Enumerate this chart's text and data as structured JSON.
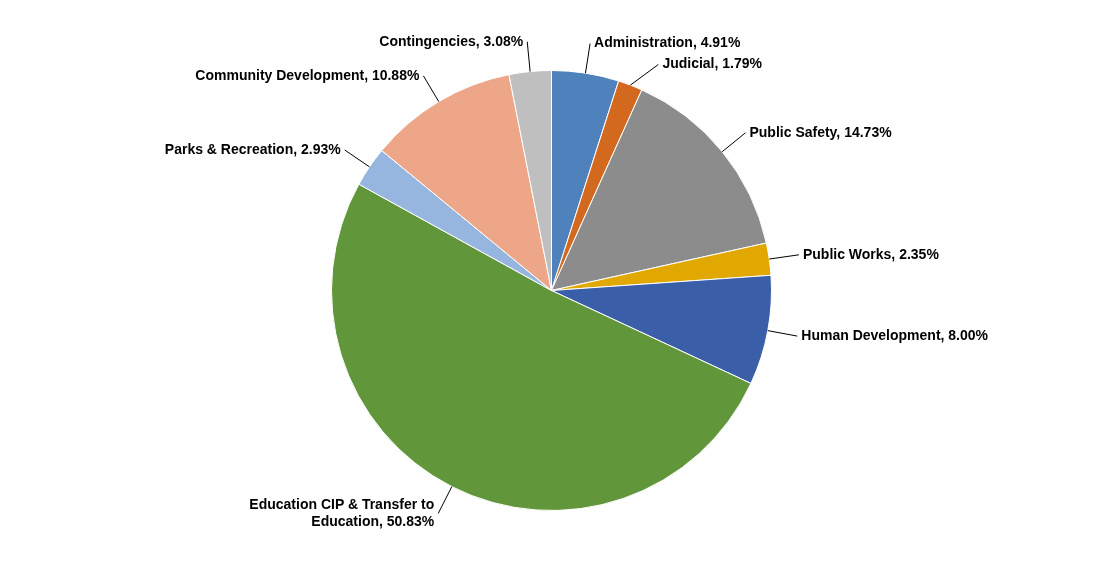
{
  "chart_data": {
    "type": "pie",
    "categories": [
      "Administration",
      "Judicial",
      "Public Safety",
      "Public Works",
      "Human Development",
      "Education CIP & Transfer to Education",
      "Parks & Recreation",
      "Community Development",
      "Contingencies"
    ],
    "values": [
      4.91,
      1.79,
      14.73,
      2.35,
      8.0,
      50.83,
      2.93,
      10.88,
      3.08
    ],
    "value_labels": [
      "4.91%",
      "1.79%",
      "14.73%",
      "2.35%",
      "8.00%",
      "50.83%",
      "2.93%",
      "10.88%",
      "3.08%"
    ],
    "colors": [
      "#4f81bd",
      "#d2691e",
      "#8c8c8c",
      "#e0a800",
      "#3a5ea8",
      "#62963b",
      "#96b6e0",
      "#eda688",
      "#bfbfbf"
    ],
    "legend": false
  }
}
